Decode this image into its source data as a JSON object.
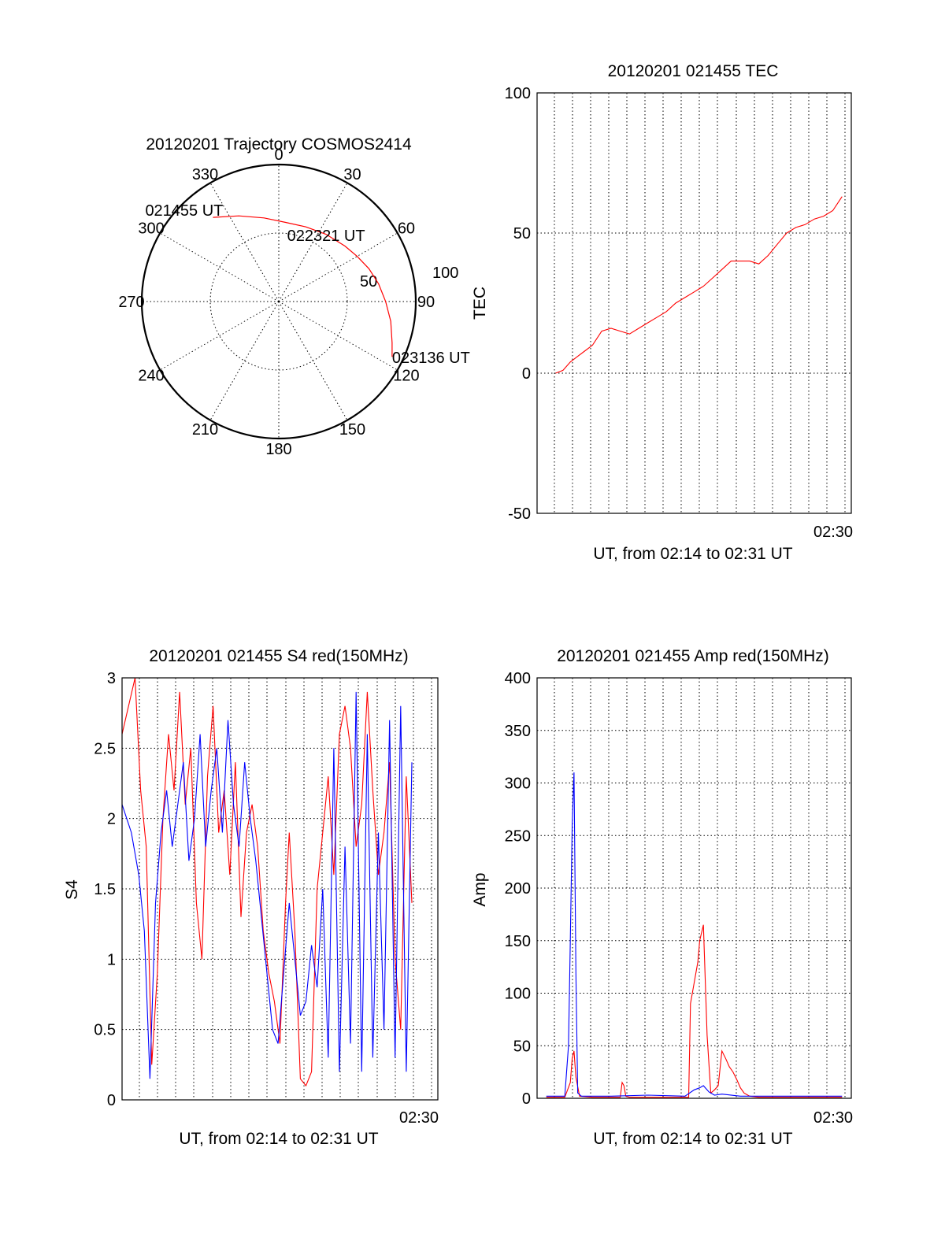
{
  "chart_data": [
    {
      "type": "polar",
      "id": "trajectory",
      "title": "20120201 Trajectory COSMOS2414",
      "angular_ticks": [
        "0",
        "30",
        "60",
        "90",
        "120",
        "150",
        "180",
        "210",
        "240",
        "270",
        "300",
        "330"
      ],
      "radial_ticks": [
        "50",
        "100"
      ],
      "rlim": [
        0,
        100
      ],
      "series": [
        {
          "color": "#ff0000",
          "points": [
            [
              322,
              78
            ],
            [
              335,
              69
            ],
            [
              350,
              62
            ],
            [
              5,
              58
            ],
            [
              20,
              58
            ],
            [
              35,
              60
            ],
            [
              50,
              63
            ],
            [
              60,
              66
            ],
            [
              70,
              70
            ],
            [
              80,
              74
            ],
            [
              90,
              78
            ],
            [
              100,
              83
            ],
            [
              110,
              88
            ],
            [
              116,
              92
            ]
          ]
        }
      ],
      "annotations": [
        {
          "text": "021455 UT",
          "az": 322,
          "r": 78
        },
        {
          "text": "022321 UT",
          "az": 55,
          "r": 65
        },
        {
          "text": "023136 UT",
          "az": 116,
          "r": 92
        }
      ]
    },
    {
      "type": "line",
      "id": "tec",
      "title": "20120201 021455 TEC",
      "ylabel": "TEC",
      "xlabel": "UT, from 02:14 to 02:31 UT",
      "xtick_label": "02:30",
      "x_range_minutes": [
        0,
        17
      ],
      "ylim": [
        -50,
        100
      ],
      "yticks": [
        -50,
        0,
        50,
        100
      ],
      "grid": true,
      "series": [
        {
          "color": "#ff0000",
          "x": [
            1.0,
            1.4,
            1.8,
            2.2,
            2.6,
            3.0,
            3.5,
            4.0,
            4.5,
            5.0,
            5.5,
            6.0,
            6.5,
            7.0,
            7.5,
            8.0,
            8.5,
            9.0,
            9.5,
            10.0,
            10.5,
            11.0,
            11.5,
            12.0,
            12.5,
            13.0,
            13.5,
            14.0,
            14.5,
            15.0,
            15.5,
            16.0,
            16.5
          ],
          "y": [
            0,
            1,
            4,
            6,
            8,
            10,
            15,
            16,
            15,
            14,
            16,
            18,
            20,
            22,
            25,
            27,
            29,
            31,
            34,
            37,
            40,
            40,
            40,
            39,
            42,
            46,
            50,
            52,
            53,
            55,
            56,
            58,
            63
          ]
        }
      ]
    },
    {
      "type": "line",
      "id": "s4",
      "title": "20120201 021455 S4 red(150MHz)",
      "ylabel": "S4",
      "xlabel": "UT, from 02:14 to 02:31 UT",
      "xtick_label": "02:30",
      "x_range_minutes": [
        0,
        17
      ],
      "ylim": [
        0,
        3
      ],
      "yticks": [
        "0",
        "0.5",
        "1",
        "1.5",
        "2",
        "2.5",
        "3"
      ],
      "grid": true,
      "series": [
        {
          "color": "#ff0000",
          "x": [
            0.0,
            0.7,
            1.0,
            1.3,
            1.6,
            1.9,
            2.2,
            2.5,
            2.8,
            3.1,
            3.4,
            3.7,
            4.0,
            4.3,
            4.6,
            4.9,
            5.2,
            5.5,
            5.8,
            6.1,
            6.4,
            6.7,
            7.0,
            7.3,
            7.6,
            7.9,
            8.2,
            8.5,
            8.8,
            9.0,
            9.3,
            9.6,
            9.9,
            10.2,
            10.5,
            10.8,
            11.1,
            11.4,
            11.7,
            12.0,
            12.3,
            12.6,
            12.9,
            13.2,
            13.5,
            13.8,
            14.1,
            14.4,
            14.7,
            15.0,
            15.3,
            15.6
          ],
          "y": [
            2.6,
            3.0,
            2.2,
            1.8,
            0.25,
            0.9,
            2.0,
            2.6,
            2.2,
            2.9,
            2.1,
            2.5,
            1.4,
            1.0,
            2.3,
            2.8,
            1.9,
            2.2,
            1.6,
            2.4,
            1.3,
            1.9,
            2.1,
            1.8,
            1.2,
            0.9,
            0.7,
            0.4,
            1.4,
            1.9,
            1.2,
            0.15,
            0.1,
            0.2,
            1.5,
            1.9,
            2.3,
            1.6,
            2.6,
            2.8,
            2.5,
            1.8,
            2.1,
            2.9,
            2.2,
            1.6,
            1.9,
            2.4,
            1.0,
            0.5,
            2.3,
            1.4
          ]
        },
        {
          "color": "#0000ff",
          "x": [
            0.0,
            0.5,
            0.9,
            1.2,
            1.5,
            1.8,
            2.1,
            2.4,
            2.7,
            3.0,
            3.3,
            3.6,
            3.9,
            4.2,
            4.5,
            4.8,
            5.1,
            5.4,
            5.7,
            6.0,
            6.3,
            6.6,
            6.9,
            7.2,
            7.5,
            7.8,
            8.1,
            8.4,
            8.7,
            9.0,
            9.3,
            9.6,
            9.9,
            10.2,
            10.5,
            10.8,
            11.1,
            11.4,
            11.7,
            12.0,
            12.3,
            12.6,
            12.9,
            13.2,
            13.5,
            13.8,
            14.1,
            14.4,
            14.7,
            15.0,
            15.3,
            15.6
          ],
          "y": [
            2.1,
            1.9,
            1.6,
            1.2,
            0.15,
            1.4,
            1.9,
            2.2,
            1.8,
            2.1,
            2.4,
            1.7,
            2.0,
            2.6,
            1.8,
            2.2,
            2.5,
            1.9,
            2.7,
            2.1,
            1.8,
            2.4,
            2.0,
            1.7,
            1.3,
            0.9,
            0.5,
            0.4,
            0.9,
            1.4,
            1.0,
            0.6,
            0.7,
            1.1,
            0.8,
            1.5,
            0.3,
            2.5,
            0.2,
            1.8,
            0.4,
            2.9,
            0.2,
            2.6,
            0.3,
            1.9,
            0.5,
            2.7,
            0.3,
            2.8,
            0.2,
            2.4
          ]
        }
      ]
    },
    {
      "type": "line",
      "id": "amp",
      "title": "20120201 021455 Amp red(150MHz)",
      "ylabel": "Amp",
      "xlabel": "UT, from 02:14 to 02:31 UT",
      "xtick_label": "02:30",
      "x_range_minutes": [
        0,
        17
      ],
      "ylim": [
        0,
        400
      ],
      "yticks": [
        "0",
        "50",
        "100",
        "150",
        "200",
        "250",
        "300",
        "350",
        "400"
      ],
      "grid": true,
      "series": [
        {
          "color": "#ff0000",
          "x": [
            0.5,
            1.5,
            1.8,
            1.9,
            2.0,
            2.1,
            2.3,
            3.0,
            4.5,
            4.6,
            4.7,
            4.8,
            5.0,
            7.0,
            8.2,
            8.3,
            8.5,
            8.7,
            8.8,
            9.0,
            9.2,
            9.4,
            9.6,
            9.8,
            10.0,
            10.2,
            10.4,
            10.6,
            10.8,
            11.0,
            11.2,
            11.5,
            12.0,
            14.0,
            16.5
          ],
          "y": [
            1,
            1,
            15,
            38,
            45,
            20,
            2,
            1,
            1,
            15,
            12,
            2,
            1,
            1,
            1,
            90,
            110,
            130,
            150,
            165,
            60,
            5,
            8,
            12,
            45,
            38,
            30,
            25,
            18,
            10,
            5,
            2,
            1,
            1,
            1
          ]
        },
        {
          "color": "#0000ff",
          "x": [
            0.5,
            1.5,
            1.7,
            1.8,
            1.9,
            2.0,
            2.1,
            2.2,
            2.4,
            4.0,
            6.0,
            8.0,
            8.5,
            8.8,
            9.0,
            9.3,
            9.6,
            10.0,
            11.0,
            12.0,
            14.0,
            16.5
          ],
          "y": [
            2,
            2,
            50,
            150,
            260,
            310,
            120,
            5,
            2,
            2,
            3,
            2,
            8,
            10,
            12,
            6,
            3,
            4,
            2,
            2,
            2,
            2
          ]
        }
      ]
    }
  ]
}
